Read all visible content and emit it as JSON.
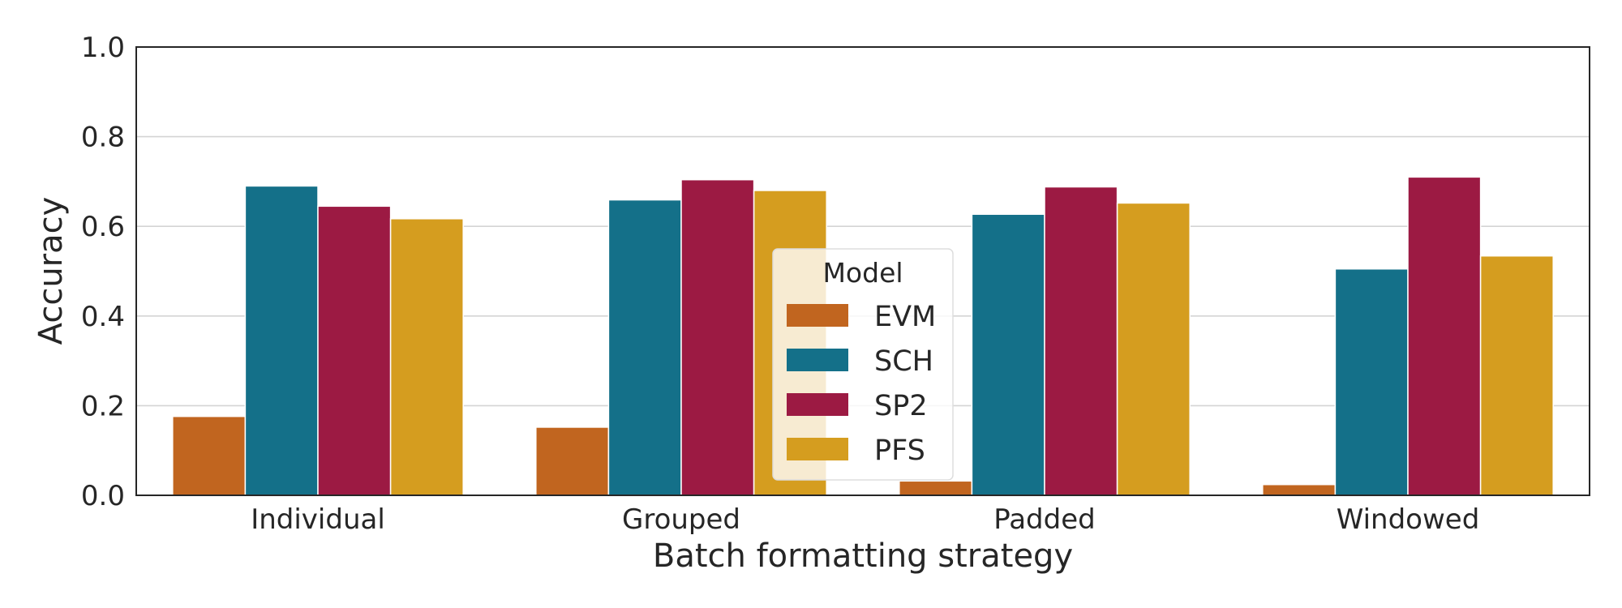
{
  "chart_data": {
    "type": "bar",
    "title": "",
    "xlabel": "Batch formatting strategy",
    "ylabel": "Accuracy",
    "ylim": [
      0,
      1
    ],
    "yticks": [
      "0.0",
      "0.2",
      "0.4",
      "0.6",
      "0.8",
      "1.0"
    ],
    "categories": [
      "Individual",
      "Grouped",
      "Padded",
      "Windowed"
    ],
    "grid": "horizontal",
    "legend": {
      "title": "Model",
      "placement": "center"
    },
    "series": [
      {
        "name": "EVM",
        "color": "#c1651f",
        "values": [
          0.176,
          0.152,
          0.032,
          0.024
        ]
      },
      {
        "name": "SCH",
        "color": "#147089",
        "values": [
          0.69,
          0.659,
          0.627,
          0.505
        ]
      },
      {
        "name": "SP2",
        "color": "#9c1a43",
        "values": [
          0.645,
          0.704,
          0.688,
          0.71
        ]
      },
      {
        "name": "PFS",
        "color": "#d59d1f",
        "values": [
          0.617,
          0.68,
          0.652,
          0.534
        ]
      }
    ]
  }
}
